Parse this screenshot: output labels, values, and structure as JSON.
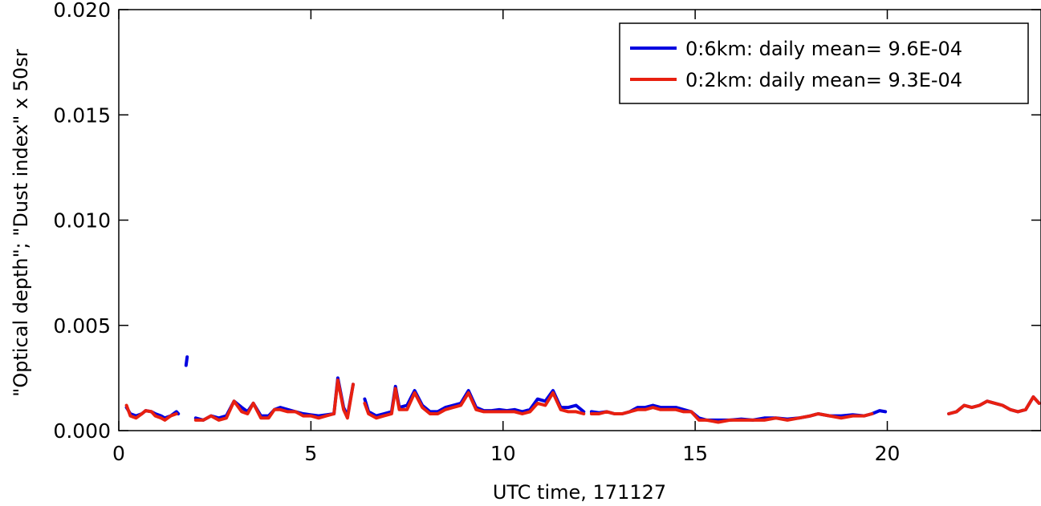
{
  "chart_data": {
    "type": "line",
    "title": "",
    "xlabel": "UTC time, 171127",
    "ylabel": "\"Optical depth\"; \"Dust index\" x 50sr",
    "xlim": [
      0,
      24
    ],
    "ylim": [
      0,
      0.02
    ],
    "xticks": [
      0,
      5,
      10,
      15,
      20
    ],
    "yticks": [
      0.0,
      0.005,
      0.01,
      0.015,
      0.02
    ],
    "ytick_labels": [
      "0.000",
      "0.005",
      "0.010",
      "0.015",
      "0.020"
    ],
    "grid": false,
    "legend_position": "top-right",
    "series": [
      {
        "name": "0:6km: daily mean= 9.6E-04",
        "color": "#0000e0",
        "segments": [
          [
            [
              0.2,
              0.0011
            ],
            [
              0.3,
              0.0008
            ],
            [
              0.45,
              0.0007
            ],
            [
              0.6,
              0.0008
            ],
            [
              0.7,
              0.00095
            ],
            [
              0.85,
              0.0009
            ],
            [
              0.95,
              0.0008
            ],
            [
              1.1,
              0.0007
            ],
            [
              1.2,
              0.0006
            ],
            [
              1.35,
              0.0007
            ],
            [
              1.5,
              0.0009
            ],
            [
              1.55,
              0.0008
            ]
          ],
          [
            [
              1.75,
              0.0031
            ],
            [
              1.78,
              0.0035
            ]
          ],
          [
            [
              2.0,
              0.0006
            ],
            [
              2.2,
              0.0005
            ],
            [
              2.4,
              0.0007
            ],
            [
              2.6,
              0.0006
            ],
            [
              2.8,
              0.0007
            ],
            [
              3.0,
              0.0014
            ],
            [
              3.2,
              0.0011
            ],
            [
              3.35,
              0.0009
            ],
            [
              3.5,
              0.0013
            ],
            [
              3.7,
              0.0007
            ],
            [
              3.9,
              0.0007
            ],
            [
              4.05,
              0.001
            ],
            [
              4.2,
              0.0011
            ],
            [
              4.4,
              0.001
            ],
            [
              4.6,
              0.0009
            ],
            [
              4.8,
              0.0008
            ],
            [
              5.0,
              0.00075
            ],
            [
              5.2,
              0.0007
            ],
            [
              5.4,
              0.00075
            ],
            [
              5.6,
              0.0008
            ],
            [
              5.7,
              0.0025
            ],
            [
              5.85,
              0.0011
            ],
            [
              5.95,
              0.0007
            ],
            [
              6.1,
              0.0022
            ]
          ],
          [
            [
              6.4,
              0.0015
            ],
            [
              6.5,
              0.0009
            ],
            [
              6.7,
              0.0007
            ],
            [
              6.9,
              0.0008
            ],
            [
              7.1,
              0.0009
            ],
            [
              7.2,
              0.0021
            ],
            [
              7.3,
              0.0011
            ],
            [
              7.5,
              0.0012
            ],
            [
              7.7,
              0.0019
            ],
            [
              7.9,
              0.0012
            ],
            [
              8.1,
              0.0009
            ],
            [
              8.3,
              0.0009
            ],
            [
              8.5,
              0.0011
            ],
            [
              8.7,
              0.0012
            ],
            [
              8.9,
              0.0013
            ],
            [
              9.1,
              0.0019
            ],
            [
              9.3,
              0.0011
            ],
            [
              9.5,
              0.00095
            ],
            [
              9.7,
              0.00095
            ],
            [
              9.9,
              0.001
            ],
            [
              10.1,
              0.00095
            ],
            [
              10.3,
              0.001
            ],
            [
              10.5,
              0.0009
            ],
            [
              10.7,
              0.001
            ],
            [
              10.9,
              0.0015
            ],
            [
              11.1,
              0.0014
            ],
            [
              11.3,
              0.0019
            ],
            [
              11.5,
              0.0011
            ],
            [
              11.7,
              0.0011
            ],
            [
              11.9,
              0.0012
            ],
            [
              12.1,
              0.0009
            ]
          ],
          [
            [
              12.3,
              0.0009
            ],
            [
              12.5,
              0.00085
            ],
            [
              12.7,
              0.0009
            ],
            [
              12.9,
              0.0008
            ],
            [
              13.1,
              0.0008
            ],
            [
              13.3,
              0.0009
            ],
            [
              13.5,
              0.0011
            ],
            [
              13.7,
              0.0011
            ],
            [
              13.9,
              0.0012
            ],
            [
              14.1,
              0.0011
            ],
            [
              14.3,
              0.0011
            ],
            [
              14.5,
              0.0011
            ],
            [
              14.7,
              0.001
            ],
            [
              14.9,
              0.0009
            ],
            [
              15.1,
              0.0006
            ],
            [
              15.3,
              0.0005
            ],
            [
              15.6,
              0.0005
            ],
            [
              15.9,
              0.0005
            ],
            [
              16.2,
              0.00055
            ],
            [
              16.5,
              0.0005
            ],
            [
              16.8,
              0.0006
            ],
            [
              17.1,
              0.0006
            ],
            [
              17.4,
              0.00055
            ],
            [
              17.7,
              0.0006
            ],
            [
              18.0,
              0.0007
            ],
            [
              18.2,
              0.0008
            ],
            [
              18.5,
              0.0007
            ],
            [
              18.8,
              0.0007
            ],
            [
              19.1,
              0.00075
            ],
            [
              19.4,
              0.0007
            ],
            [
              19.6,
              0.0008
            ],
            [
              19.8,
              0.00095
            ],
            [
              19.95,
              0.0009
            ]
          ],
          [
            [
              21.6,
              0.0008
            ],
            [
              21.8,
              0.0009
            ],
            [
              22.0,
              0.0012
            ],
            [
              22.2,
              0.0011
            ],
            [
              22.4,
              0.0012
            ],
            [
              22.6,
              0.0014
            ],
            [
              22.8,
              0.0013
            ],
            [
              23.0,
              0.0012
            ],
            [
              23.2,
              0.001
            ],
            [
              23.4,
              0.0009
            ],
            [
              23.6,
              0.001
            ],
            [
              23.8,
              0.0016
            ],
            [
              23.95,
              0.0013
            ]
          ]
        ]
      },
      {
        "name": "0:2km: daily mean= 9.3E-04",
        "color": "#e82010",
        "segments": [
          [
            [
              0.2,
              0.0012
            ],
            [
              0.3,
              0.0007
            ],
            [
              0.45,
              0.0006
            ],
            [
              0.6,
              0.0008
            ],
            [
              0.7,
              0.00095
            ],
            [
              0.85,
              0.0009
            ],
            [
              0.95,
              0.0007
            ],
            [
              1.1,
              0.0006
            ],
            [
              1.2,
              0.0005
            ],
            [
              1.35,
              0.0007
            ],
            [
              1.5,
              0.0008
            ]
          ],
          [
            [
              2.0,
              0.0005
            ],
            [
              2.2,
              0.0005
            ],
            [
              2.4,
              0.0007
            ],
            [
              2.6,
              0.0005
            ],
            [
              2.8,
              0.0006
            ],
            [
              3.0,
              0.0014
            ],
            [
              3.2,
              0.0009
            ],
            [
              3.35,
              0.0008
            ],
            [
              3.5,
              0.0013
            ],
            [
              3.7,
              0.0006
            ],
            [
              3.9,
              0.0006
            ],
            [
              4.05,
              0.001
            ],
            [
              4.2,
              0.001
            ],
            [
              4.4,
              0.0009
            ],
            [
              4.6,
              0.0009
            ],
            [
              4.8,
              0.0007
            ],
            [
              5.0,
              0.0007
            ],
            [
              5.2,
              0.0006
            ],
            [
              5.4,
              0.0007
            ],
            [
              5.6,
              0.0008
            ],
            [
              5.7,
              0.0024
            ],
            [
              5.85,
              0.001
            ],
            [
              5.95,
              0.0006
            ],
            [
              6.1,
              0.0022
            ]
          ],
          [
            [
              6.4,
              0.0013
            ],
            [
              6.5,
              0.0008
            ],
            [
              6.7,
              0.0006
            ],
            [
              6.9,
              0.0007
            ],
            [
              7.1,
              0.0008
            ],
            [
              7.2,
              0.002
            ],
            [
              7.3,
              0.001
            ],
            [
              7.5,
              0.001
            ],
            [
              7.7,
              0.0018
            ],
            [
              7.9,
              0.0011
            ],
            [
              8.1,
              0.0008
            ],
            [
              8.3,
              0.0008
            ],
            [
              8.5,
              0.001
            ],
            [
              8.7,
              0.0011
            ],
            [
              8.9,
              0.0012
            ],
            [
              9.1,
              0.0018
            ],
            [
              9.3,
              0.001
            ],
            [
              9.5,
              0.0009
            ],
            [
              9.7,
              0.0009
            ],
            [
              9.9,
              0.0009
            ],
            [
              10.1,
              0.0009
            ],
            [
              10.3,
              0.0009
            ],
            [
              10.5,
              0.0008
            ],
            [
              10.7,
              0.0009
            ],
            [
              10.9,
              0.0013
            ],
            [
              11.1,
              0.0012
            ],
            [
              11.3,
              0.0018
            ],
            [
              11.5,
              0.001
            ],
            [
              11.7,
              0.0009
            ],
            [
              11.9,
              0.0009
            ],
            [
              12.1,
              0.0008
            ]
          ],
          [
            [
              12.3,
              0.0008
            ],
            [
              12.5,
              0.0008
            ],
            [
              12.7,
              0.0009
            ],
            [
              12.9,
              0.0008
            ],
            [
              13.1,
              0.0008
            ],
            [
              13.3,
              0.0009
            ],
            [
              13.5,
              0.001
            ],
            [
              13.7,
              0.001
            ],
            [
              13.9,
              0.0011
            ],
            [
              14.1,
              0.001
            ],
            [
              14.3,
              0.001
            ],
            [
              14.5,
              0.001
            ],
            [
              14.7,
              0.0009
            ],
            [
              14.9,
              0.0009
            ],
            [
              15.1,
              0.0005
            ],
            [
              15.3,
              0.0005
            ],
            [
              15.6,
              0.0004
            ],
            [
              15.9,
              0.0005
            ],
            [
              16.2,
              0.0005
            ],
            [
              16.5,
              0.0005
            ],
            [
              16.8,
              0.0005
            ],
            [
              17.1,
              0.0006
            ],
            [
              17.4,
              0.0005
            ],
            [
              17.7,
              0.0006
            ],
            [
              18.0,
              0.0007
            ],
            [
              18.2,
              0.0008
            ],
            [
              18.5,
              0.0007
            ],
            [
              18.8,
              0.0006
            ],
            [
              19.1,
              0.0007
            ],
            [
              19.4,
              0.0007
            ],
            [
              19.6,
              0.0008
            ]
          ],
          [
            [
              21.6,
              0.0008
            ],
            [
              21.8,
              0.0009
            ],
            [
              22.0,
              0.0012
            ],
            [
              22.2,
              0.0011
            ],
            [
              22.4,
              0.0012
            ],
            [
              22.6,
              0.0014
            ],
            [
              22.8,
              0.0013
            ],
            [
              23.0,
              0.0012
            ],
            [
              23.2,
              0.001
            ],
            [
              23.4,
              0.0009
            ],
            [
              23.6,
              0.001
            ],
            [
              23.8,
              0.0016
            ],
            [
              23.95,
              0.0013
            ]
          ]
        ]
      }
    ]
  }
}
